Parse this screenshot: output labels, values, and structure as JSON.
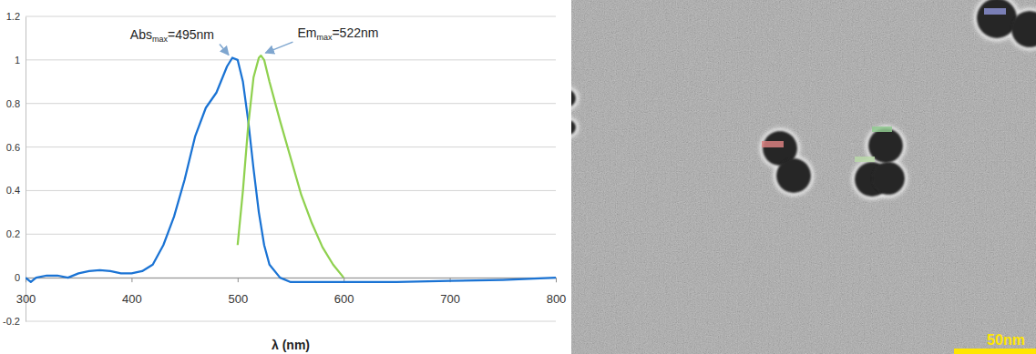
{
  "chart_data": {
    "type": "line",
    "x_label": "λ (nm)",
    "xlim": [
      300,
      800
    ],
    "xticks": [
      300,
      400,
      500,
      600,
      700,
      800
    ],
    "ylim": [
      -0.2,
      1.2
    ],
    "yticks": [
      -0.2,
      0,
      0.2,
      0.4,
      0.6,
      0.8,
      1,
      1.2
    ],
    "grid": true,
    "series": [
      {
        "color": "#1a73d4",
        "x": [
          300,
          305,
          310,
          320,
          330,
          340,
          350,
          360,
          370,
          380,
          390,
          400,
          410,
          420,
          430,
          440,
          450,
          460,
          470,
          480,
          490,
          495,
          500,
          505,
          510,
          515,
          520,
          525,
          530,
          540,
          550,
          600,
          650,
          700,
          750,
          800
        ],
        "values": [
          0.0,
          -0.02,
          0.0,
          0.01,
          0.01,
          0.0,
          0.02,
          0.03,
          0.035,
          0.03,
          0.02,
          0.02,
          0.03,
          0.06,
          0.15,
          0.28,
          0.45,
          0.65,
          0.78,
          0.85,
          0.97,
          1.01,
          1.0,
          0.9,
          0.72,
          0.5,
          0.3,
          0.15,
          0.06,
          0.0,
          -0.02,
          -0.02,
          -0.02,
          -0.015,
          -0.01,
          0.0
        ]
      },
      {
        "color": "#8fd14f",
        "x": [
          500,
          505,
          510,
          515,
          520,
          522,
          525,
          530,
          540,
          550,
          560,
          570,
          580,
          590,
          600
        ],
        "values": [
          0.15,
          0.4,
          0.7,
          0.92,
          1.01,
          1.02,
          1.0,
          0.9,
          0.72,
          0.55,
          0.38,
          0.25,
          0.14,
          0.06,
          0.0
        ]
      }
    ],
    "annotations": [
      {
        "text": "Absmax=495nm",
        "subscript": "max",
        "x": 495,
        "y": 1.01
      },
      {
        "text": "Emmax=522nm",
        "subscript": "max",
        "x": 522,
        "y": 1.02
      }
    ]
  },
  "micrograph": {
    "scale_bar": "50nm"
  }
}
